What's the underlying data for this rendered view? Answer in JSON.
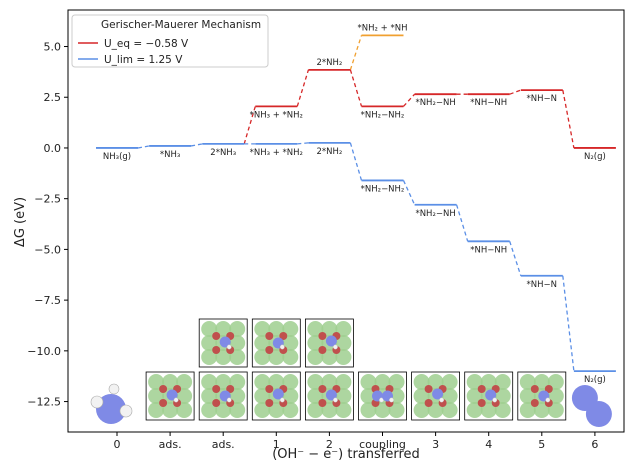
{
  "chart_data": {
    "type": "line",
    "style": "free-energy-step-diagram",
    "xlabel": "(OH⁻ − e⁻) transferred",
    "ylabel": "ΔG (eV)",
    "ylim": [
      -14.0,
      6.8
    ],
    "yticks": [
      5.0,
      2.5,
      0.0,
      -2.5,
      -5.0,
      -7.5,
      -10.0,
      -12.5
    ],
    "ytick_labels": [
      "5.0",
      "2.5",
      "0.0",
      "−2.5",
      "−5.0",
      "−7.5",
      "−10.0",
      "−12.5"
    ],
    "x_categories": [
      "0",
      "ads.",
      "ads.",
      "1",
      "2",
      "coupling",
      "3",
      "4",
      "5",
      "6"
    ],
    "legend": {
      "position": "top-left",
      "title": "Gerischer-Mauerer Mechanism",
      "entries": [
        {
          "label": "U_eq = −0.58 V",
          "color": "#d62728"
        },
        {
          "label": "U_lim = 1.25 V",
          "color": "#5b8fe6"
        }
      ]
    },
    "series": [
      {
        "name": "U_eq = −0.58 V",
        "color": "#d62728",
        "points": [
          {
            "x": 3,
            "y": 2.05,
            "label": "*NH₃ + *NH₂"
          },
          {
            "x": 4,
            "y": 3.85,
            "label": "2*NH₂"
          },
          {
            "x": 5,
            "y": 2.05,
            "label": "*NH₂−NH₂"
          },
          {
            "x": 6,
            "y": 2.65,
            "label": "*NH₂−NH"
          },
          {
            "x": 7,
            "y": 2.65,
            "label": "*NH−NH"
          },
          {
            "x": 8,
            "y": 2.85,
            "label": "*NH−N"
          },
          {
            "x": 9,
            "y": 0.0,
            "label": "N₂(g)"
          }
        ]
      },
      {
        "name": "U_lim = 1.25 V",
        "color": "#5b8fe6",
        "points": [
          {
            "x": 3,
            "y": 0.2,
            "label": "*NH₃ + *NH₂"
          },
          {
            "x": 4,
            "y": 0.25,
            "label": "2*NH₂"
          },
          {
            "x": 5,
            "y": -1.6,
            "label": "*NH₂−NH₂"
          },
          {
            "x": 6,
            "y": -2.8,
            "label": "*NH₂−NH"
          },
          {
            "x": 7,
            "y": -4.6,
            "label": "*NH−NH"
          },
          {
            "x": 8,
            "y": -6.3,
            "label": "*NH−N"
          },
          {
            "x": 9,
            "y": -11.0,
            "label": "N₂(g)"
          }
        ]
      },
      {
        "name": "shared",
        "color": "#5b8fe6",
        "points": [
          {
            "x": 0,
            "y": 0.0,
            "label": "NH₃(g)"
          },
          {
            "x": 1,
            "y": 0.1,
            "label": "*NH₃"
          },
          {
            "x": 2,
            "y": 0.2,
            "label": "2*NH₃"
          }
        ]
      },
      {
        "name": "branch",
        "color": "#f0a030",
        "points": [
          {
            "x": 4,
            "y": 3.85
          },
          {
            "x": 5,
            "y": 5.55,
            "label": "*NH₂ + *NH"
          }
        ]
      }
    ]
  },
  "thumbnails": {
    "atom_colors": {
      "support": "#9fcf8f",
      "oxygen": "#c0504d",
      "nitrogen": "#7f8ae6",
      "hydrogen": "#f2f2f2"
    },
    "bottom_row": [
      "0",
      "ads.",
      "ads.",
      "1",
      "2",
      "coupling",
      "3",
      "4",
      "5",
      "6"
    ],
    "top_row": [
      "ads.",
      "1",
      "2"
    ]
  }
}
